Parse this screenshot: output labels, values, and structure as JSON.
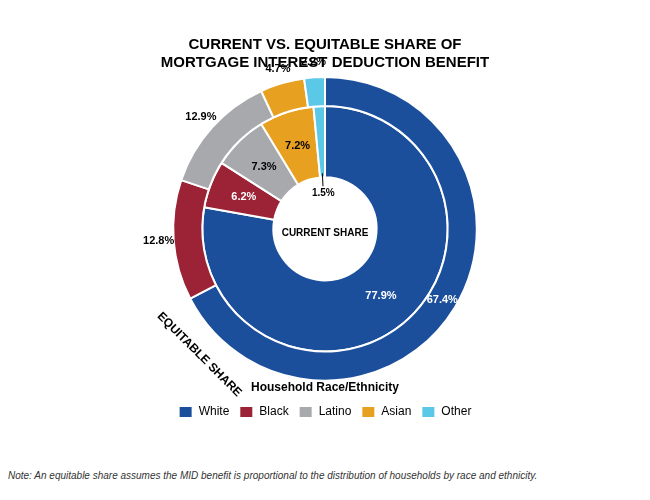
{
  "chart_data": {
    "type": "doughnut",
    "title": "CURRENT VS. EQUITABLE SHARE OF\nMORTGAGE INTEREST DEDUCTION BENEFIT",
    "categories": [
      "White",
      "Black",
      "Latino",
      "Asian",
      "Other"
    ],
    "colors": [
      "#1B4F9C",
      "#9B2335",
      "#A8A9AD",
      "#E8A020",
      "#5BC8E8"
    ],
    "series": [
      {
        "name": "EQUITABLE SHARE",
        "values": [
          67.4,
          12.8,
          12.9,
          4.7,
          2.2
        ],
        "value_labels": [
          "67.4%",
          "12.8%",
          "12.9%",
          "4.7%",
          "2.2%"
        ]
      },
      {
        "name": "CURRENT SHARE",
        "values": [
          77.9,
          6.2,
          7.3,
          7.2,
          1.5
        ],
        "value_labels": [
          "77.9%",
          "6.2%",
          "7.3%",
          "7.2%",
          "1.5%"
        ]
      }
    ],
    "data_labels": true,
    "legend": "bottom",
    "legend_title": "Household Race/Ethnicity",
    "note": "Note: An equitable share assumes the MID benefit is proportional to the distribution of households by race and ethnicity."
  }
}
